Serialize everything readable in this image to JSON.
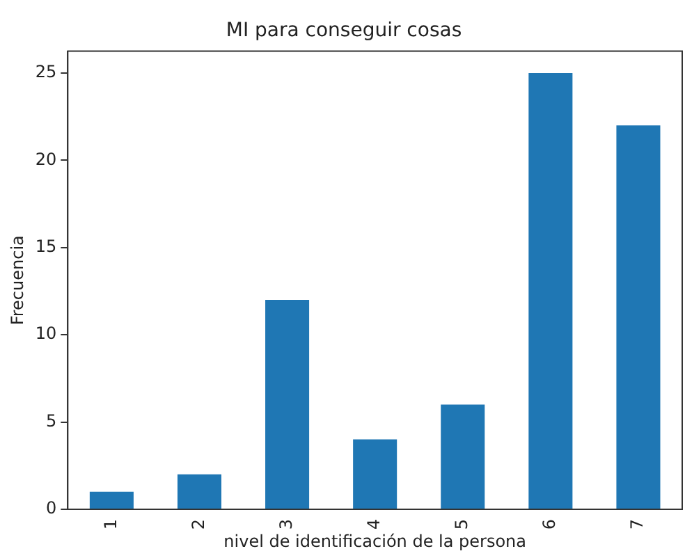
{
  "chart_data": {
    "type": "bar",
    "title": "MI para conseguir cosas",
    "xlabel": "nivel de identificación de la persona",
    "ylabel": "Frecuencia",
    "categories": [
      "1",
      "2",
      "3",
      "4",
      "5",
      "6",
      "7"
    ],
    "values": [
      1,
      2,
      12,
      4,
      6,
      25,
      22
    ],
    "color": "#1f77b4",
    "ylim": [
      0,
      26.25
    ],
    "yticks": [
      0,
      5,
      10,
      15,
      20,
      25
    ],
    "grid": false,
    "legend": false
  }
}
